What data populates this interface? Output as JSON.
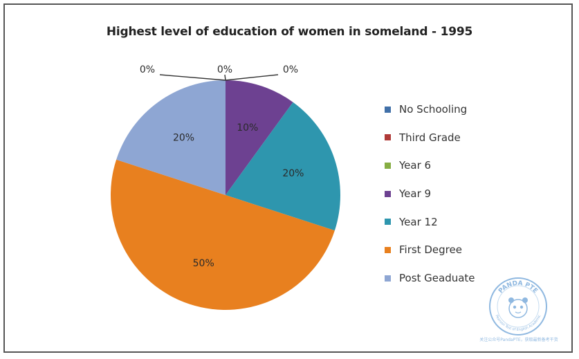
{
  "chart_data": {
    "type": "pie",
    "title": "Highest level of education of women in someland - 1995",
    "slices": [
      {
        "label": "No Schooling",
        "value": 0,
        "display": "0%",
        "color": "#4170a8"
      },
      {
        "label": "Third Grade",
        "value": 0,
        "display": "0%",
        "color": "#b03a38"
      },
      {
        "label": "Year 6",
        "value": 0,
        "display": "0%",
        "color": "#86ad43"
      },
      {
        "label": "Year 9",
        "value": 10,
        "display": "10%",
        "color": "#6d4191"
      },
      {
        "label": "Year 12",
        "value": 20,
        "display": "20%",
        "color": "#2e96ae"
      },
      {
        "label": "First Degree",
        "value": 50,
        "display": "50%",
        "color": "#e8801f"
      },
      {
        "label": "Post Geaduate",
        "value": 20,
        "display": "20%",
        "color": "#8ea6d3"
      }
    ],
    "legend_position": "right"
  },
  "watermark": {
    "brand": "PANDA PTE",
    "tagline": "Pearson Test of English Academic",
    "caption": "关注公众号PandaPTE，获取最新备考干货"
  }
}
